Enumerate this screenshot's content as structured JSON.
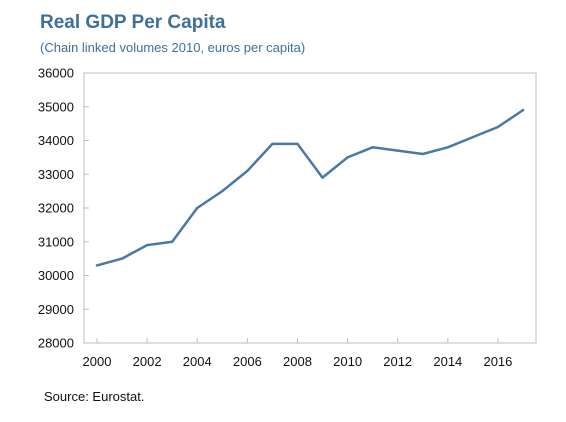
{
  "chart_data": {
    "type": "line",
    "title": "Real GDP Per Capita",
    "subtitle": "(Chain linked volumes 2010, euros per capita)",
    "source": "Source: Eurostat.",
    "xlabel": "",
    "ylabel": "",
    "xlim": [
      2000,
      2017
    ],
    "ylim": [
      28000,
      36000
    ],
    "x_ticks": [
      "2000",
      "2002",
      "2004",
      "2006",
      "2008",
      "2010",
      "2012",
      "2014",
      "2016"
    ],
    "y_ticks": [
      "28000",
      "29000",
      "30000",
      "31000",
      "32000",
      "33000",
      "34000",
      "35000",
      "36000"
    ],
    "grid": false,
    "line_color": "#4a79a5",
    "series": [
      {
        "x": [
          2000,
          2001,
          2002,
          2003,
          2004,
          2005,
          2006,
          2007,
          2008,
          2009,
          2010,
          2011,
          2012,
          2013,
          2014,
          2015,
          2016,
          2017
        ],
        "values": [
          30300,
          30500,
          30900,
          31000,
          32000,
          32500,
          33100,
          33900,
          33900,
          32900,
          33500,
          33800,
          33700,
          33600,
          33800,
          34100,
          34400,
          34900
        ]
      }
    ]
  }
}
